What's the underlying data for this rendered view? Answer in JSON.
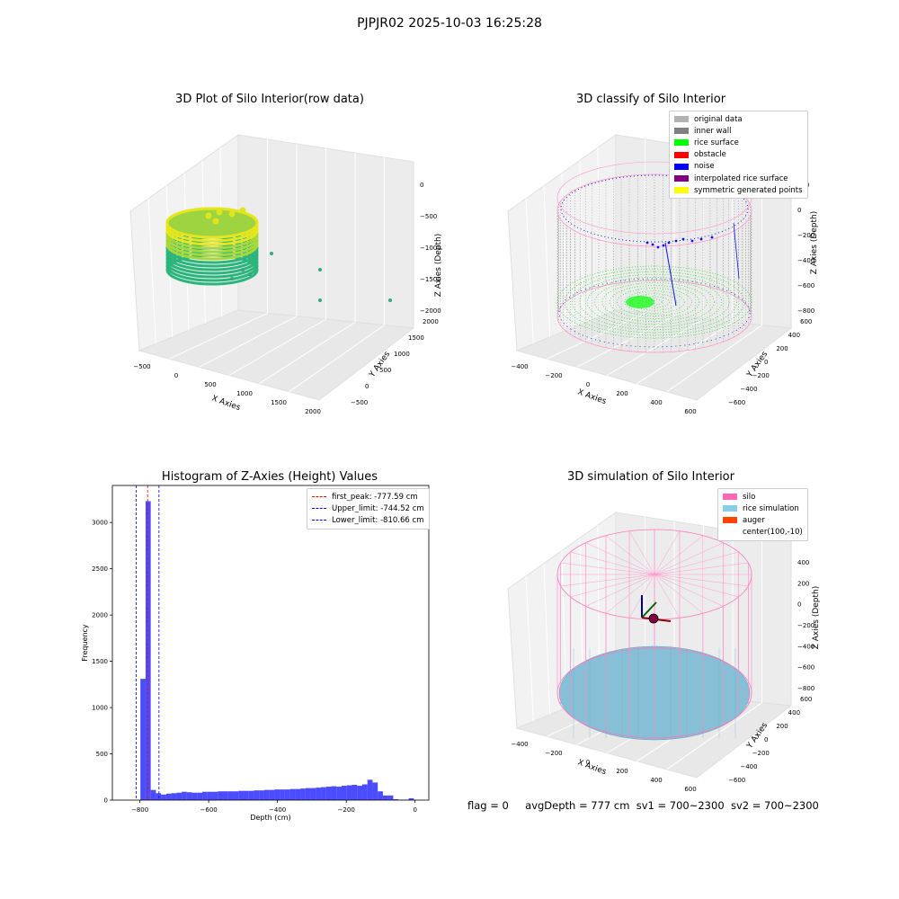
{
  "figure": {
    "suptitle": "PJPJR02 2025-10-03 16:25:28",
    "footer": {
      "flag": "flag = 0",
      "avg_depth": "avgDepth = 777 cm",
      "sv1": "sv1 = 700~2300",
      "sv2": "sv2 = 700~2300"
    }
  },
  "panels": {
    "raw": {
      "title": "3D Plot of Silo Interior(row data)",
      "xlabel": "X Axies",
      "ylabel": "Y Axies",
      "zlabel": "Z Axies (Depth)",
      "xticks": [
        "−500",
        "0",
        "500",
        "1000",
        "1500",
        "2000"
      ],
      "yticks": [
        "−500",
        "0",
        "500",
        "1000",
        "1500",
        "2000"
      ],
      "zticks": [
        "0",
        "−500",
        "−1000",
        "−1500",
        "−2000"
      ]
    },
    "classify": {
      "title": "3D classify of Silo Interior",
      "xlabel": "X Axies",
      "ylabel": "Y Axies",
      "zlabel": "Z Axies (Depth)",
      "xticks": [
        "−400",
        "−200",
        "0",
        "200",
        "400",
        "600"
      ],
      "yticks": [
        "−600",
        "−400",
        "−200",
        "0",
        "200",
        "400",
        "600"
      ],
      "zticks": [
        "200",
        "0",
        "−200",
        "−400",
        "−600",
        "−800"
      ],
      "legend": [
        {
          "label": "original data",
          "color": "#b3b3b3"
        },
        {
          "label": "inner wall",
          "color": "#808080"
        },
        {
          "label": "rice surface",
          "color": "#00ff00"
        },
        {
          "label": "obstacle",
          "color": "#ff0000"
        },
        {
          "label": "noise",
          "color": "#0000ff"
        },
        {
          "label": "interpolated rice surface",
          "color": "#800080"
        },
        {
          "label": "symmetric generated points",
          "color": "#ffff00"
        }
      ]
    },
    "simulation": {
      "title": "3D simulation of Silo Interior",
      "xlabel": "X Axies",
      "ylabel": "Y Axies",
      "zlabel": "Z Axies (Depth)",
      "xticks": [
        "−400",
        "−200",
        "0",
        "200",
        "400",
        "600"
      ],
      "yticks": [
        "−600",
        "−400",
        "−200",
        "0",
        "200",
        "400",
        "600"
      ],
      "zticks": [
        "400",
        "200",
        "0",
        "−200",
        "−400",
        "−600",
        "−800"
      ],
      "legend": [
        {
          "label": "silo",
          "color": "#ff69b4"
        },
        {
          "label": "rice simulation",
          "color": "#87ceeb"
        },
        {
          "label": "auger",
          "color": "#ff4500"
        },
        {
          "label": "center(100,-10)",
          "color": ""
        }
      ]
    }
  },
  "chart_data": [
    {
      "type": "scatter",
      "title": "3D Plot of Silo Interior(row data)",
      "xlabel": "X Axies",
      "ylabel": "Y Axies",
      "zlabel": "Z Axies (Depth)",
      "xlim": [
        -700,
        2200
      ],
      "ylim": [
        -600,
        2100
      ],
      "zlim": [
        -2200,
        100
      ],
      "grid": true
    },
    {
      "type": "scatter",
      "title": "3D classify of Silo Interior",
      "xlabel": "X Axies",
      "ylabel": "Y Axies",
      "zlabel": "Z Axies (Depth)",
      "xlim": [
        -500,
        700
      ],
      "ylim": [
        -700,
        700
      ],
      "zlim": [
        -900,
        300
      ],
      "legend_position": "top-right",
      "grid": true
    },
    {
      "type": "bar",
      "title": "Histogram of Z-Axies (Height) Values",
      "xlabel": "Depth (cm)",
      "ylabel": "Frequency",
      "xlim": [
        -880,
        40
      ],
      "ylim": [
        0,
        3400
      ],
      "xticks": [
        "−800",
        "−600",
        "−400",
        "−200",
        "0"
      ],
      "yticks": [
        "0",
        "500",
        "1000",
        "1500",
        "2000",
        "2500",
        "3000"
      ],
      "bar_color": "#0000ff",
      "bin_width": 15,
      "bins": [
        {
          "x": -791,
          "value": 1310
        },
        {
          "x": -776,
          "value": 3230
        },
        {
          "x": -761,
          "value": 110
        },
        {
          "x": -746,
          "value": 75
        },
        {
          "x": -731,
          "value": 60
        },
        {
          "x": -716,
          "value": 70
        },
        {
          "x": -701,
          "value": 75
        },
        {
          "x": -686,
          "value": 80
        },
        {
          "x": -671,
          "value": 90
        },
        {
          "x": -656,
          "value": 85
        },
        {
          "x": -641,
          "value": 80
        },
        {
          "x": -626,
          "value": 80
        },
        {
          "x": -611,
          "value": 90
        },
        {
          "x": -596,
          "value": 90
        },
        {
          "x": -581,
          "value": 90
        },
        {
          "x": -566,
          "value": 95
        },
        {
          "x": -551,
          "value": 95
        },
        {
          "x": -536,
          "value": 95
        },
        {
          "x": -521,
          "value": 95
        },
        {
          "x": -506,
          "value": 100
        },
        {
          "x": -491,
          "value": 100
        },
        {
          "x": -476,
          "value": 100
        },
        {
          "x": -461,
          "value": 105
        },
        {
          "x": -446,
          "value": 105
        },
        {
          "x": -431,
          "value": 110
        },
        {
          "x": -416,
          "value": 110
        },
        {
          "x": -401,
          "value": 115
        },
        {
          "x": -386,
          "value": 115
        },
        {
          "x": -371,
          "value": 115
        },
        {
          "x": -356,
          "value": 120
        },
        {
          "x": -341,
          "value": 120
        },
        {
          "x": -326,
          "value": 125
        },
        {
          "x": -311,
          "value": 130
        },
        {
          "x": -296,
          "value": 130
        },
        {
          "x": -281,
          "value": 135
        },
        {
          "x": -266,
          "value": 140
        },
        {
          "x": -251,
          "value": 145
        },
        {
          "x": -236,
          "value": 150
        },
        {
          "x": -221,
          "value": 145
        },
        {
          "x": -206,
          "value": 155
        },
        {
          "x": -191,
          "value": 160
        },
        {
          "x": -176,
          "value": 165
        },
        {
          "x": -161,
          "value": 155
        },
        {
          "x": -146,
          "value": 170
        },
        {
          "x": -131,
          "value": 220
        },
        {
          "x": -116,
          "value": 190
        },
        {
          "x": -101,
          "value": 95
        },
        {
          "x": -86,
          "value": 50
        },
        {
          "x": -71,
          "value": 50
        },
        {
          "x": -56,
          "value": 10
        },
        {
          "x": -41,
          "value": 5
        },
        {
          "x": -26,
          "value": 5
        },
        {
          "x": -11,
          "value": 20
        }
      ],
      "vlines": [
        {
          "label": "first_peak: -777.59 cm",
          "x": -777.59,
          "color": "#ff0000"
        },
        {
          "label": "Upper_limit: -744.52 cm",
          "x": -744.52,
          "color": "#0000ff"
        },
        {
          "label": "Lower_limit: -810.66 cm",
          "x": -810.66,
          "color": "#0000ff"
        }
      ],
      "legend_position": "top-right"
    },
    {
      "type": "scatter",
      "title": "3D simulation of Silo Interior",
      "xlabel": "X Axies",
      "ylabel": "Y Axies",
      "zlabel": "Z Axies (Depth)",
      "xlim": [
        -500,
        700
      ],
      "ylim": [
        -700,
        700
      ],
      "zlim": [
        -900,
        500
      ],
      "legend_position": "top-right",
      "grid": true
    }
  ]
}
